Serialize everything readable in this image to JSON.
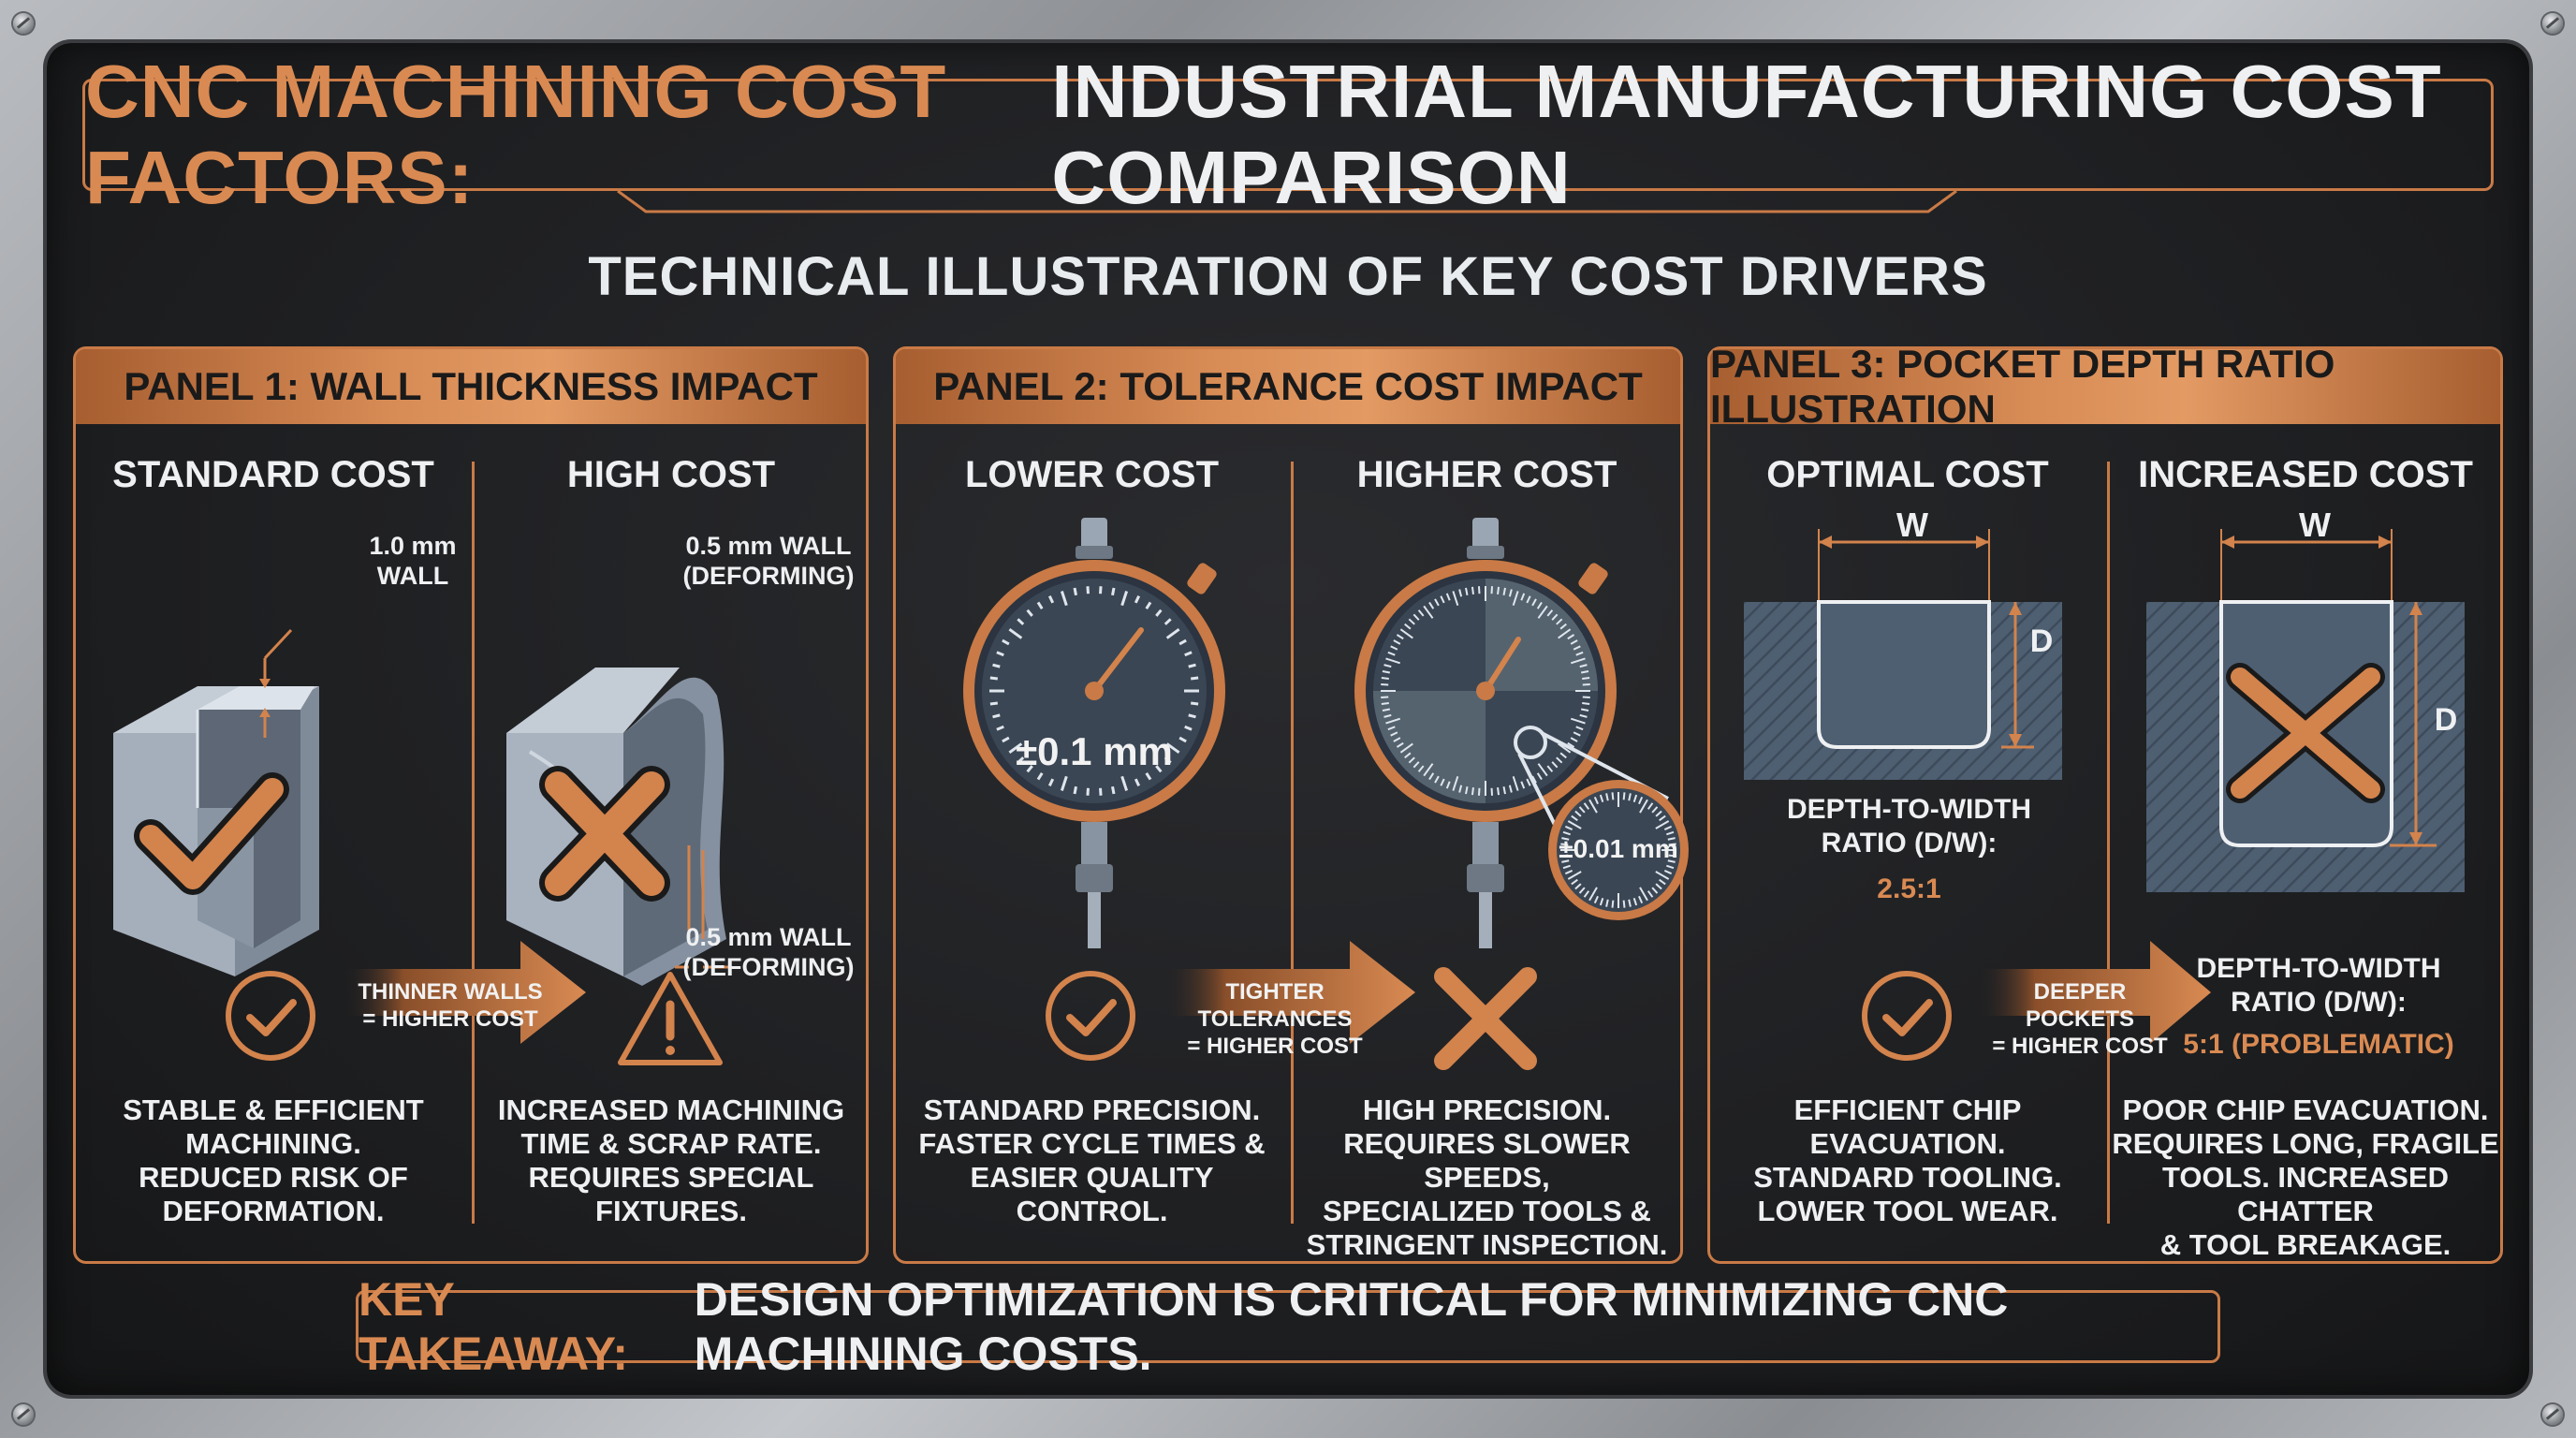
{
  "title": {
    "accent": "CNC MACHINING COST FACTORS:",
    "main": "INDUSTRIAL MANUFACTURING COST COMPARISON"
  },
  "subtitle": "TECHNICAL ILLUSTRATION OF KEY COST DRIVERS",
  "panels": [
    {
      "heading": "PANEL 1: WALL THICKNESS IMPACT",
      "left": {
        "title": "STANDARD COST",
        "callout": "1.0 mm\nWALL",
        "description": "STABLE & EFFICIENT\nMACHINING.\nREDUCED RISK OF\nDEFORMATION."
      },
      "right": {
        "title": "HIGH COST",
        "callout_top": "0.5 mm WALL\n(DEFORMING)",
        "callout_bottom": "0.5 mm WALL\n(DEFORMING)",
        "description": "INCREASED MACHINING\nTIME & SCRAP RATE.\nREQUIRES SPECIAL\nFIXTURES."
      },
      "arrow_text": "THINNER WALLS\n= HIGHER COST"
    },
    {
      "heading": "PANEL 2: TOLERANCE COST IMPACT",
      "left": {
        "title": "LOWER COST",
        "dial_value": "±0.1 mm",
        "description": "STANDARD PRECISION.\nFASTER CYCLE TIMES &\nEASIER QUALITY CONTROL."
      },
      "right": {
        "title": "HIGHER COST",
        "dial_value": "±0.01 mm",
        "description": "HIGH PRECISION.\nREQUIRES SLOWER SPEEDS,\nSPECIALIZED TOOLS &\nSTRINGENT INSPECTION."
      },
      "arrow_text": "TIGHTER TOLERANCES\n= HIGHER COST"
    },
    {
      "heading": "PANEL 3: POCKET DEPTH RATIO ILLUSTRATION",
      "left": {
        "title": "OPTIMAL COST",
        "width_label": "W",
        "depth_label": "D",
        "ratio_label": "DEPTH-TO-WIDTH\nRATIO (D/W):",
        "ratio_value": "2.5:1",
        "description": "EFFICIENT CHIP\nEVACUATION.\nSTANDARD TOOLING.\nLOWER TOOL WEAR."
      },
      "right": {
        "title": "INCREASED COST",
        "width_label": "W",
        "depth_label": "D",
        "ratio_label": "DEPTH-TO-WIDTH\nRATIO (D/W):",
        "ratio_value": "5:1 (PROBLEMATIC)",
        "description": "POOR CHIP EVACUATION.\nREQUIRES LONG, FRAGILE\nTOOLS. INCREASED CHATTER\n& TOOL BREAKAGE."
      },
      "arrow_text": "DEEPER POCKETS\n= HIGHER COST"
    }
  ],
  "takeaway": {
    "accent": "KEY TAKEAWAY:",
    "main": "DESIGN OPTIMIZATION IS CRITICAL FOR MINIMIZING CNC MACHINING COSTS."
  },
  "colors": {
    "copper": "#c97a46",
    "board": "#1f2022",
    "steel": "#8fa0b3",
    "slate": "#4e5f72"
  }
}
